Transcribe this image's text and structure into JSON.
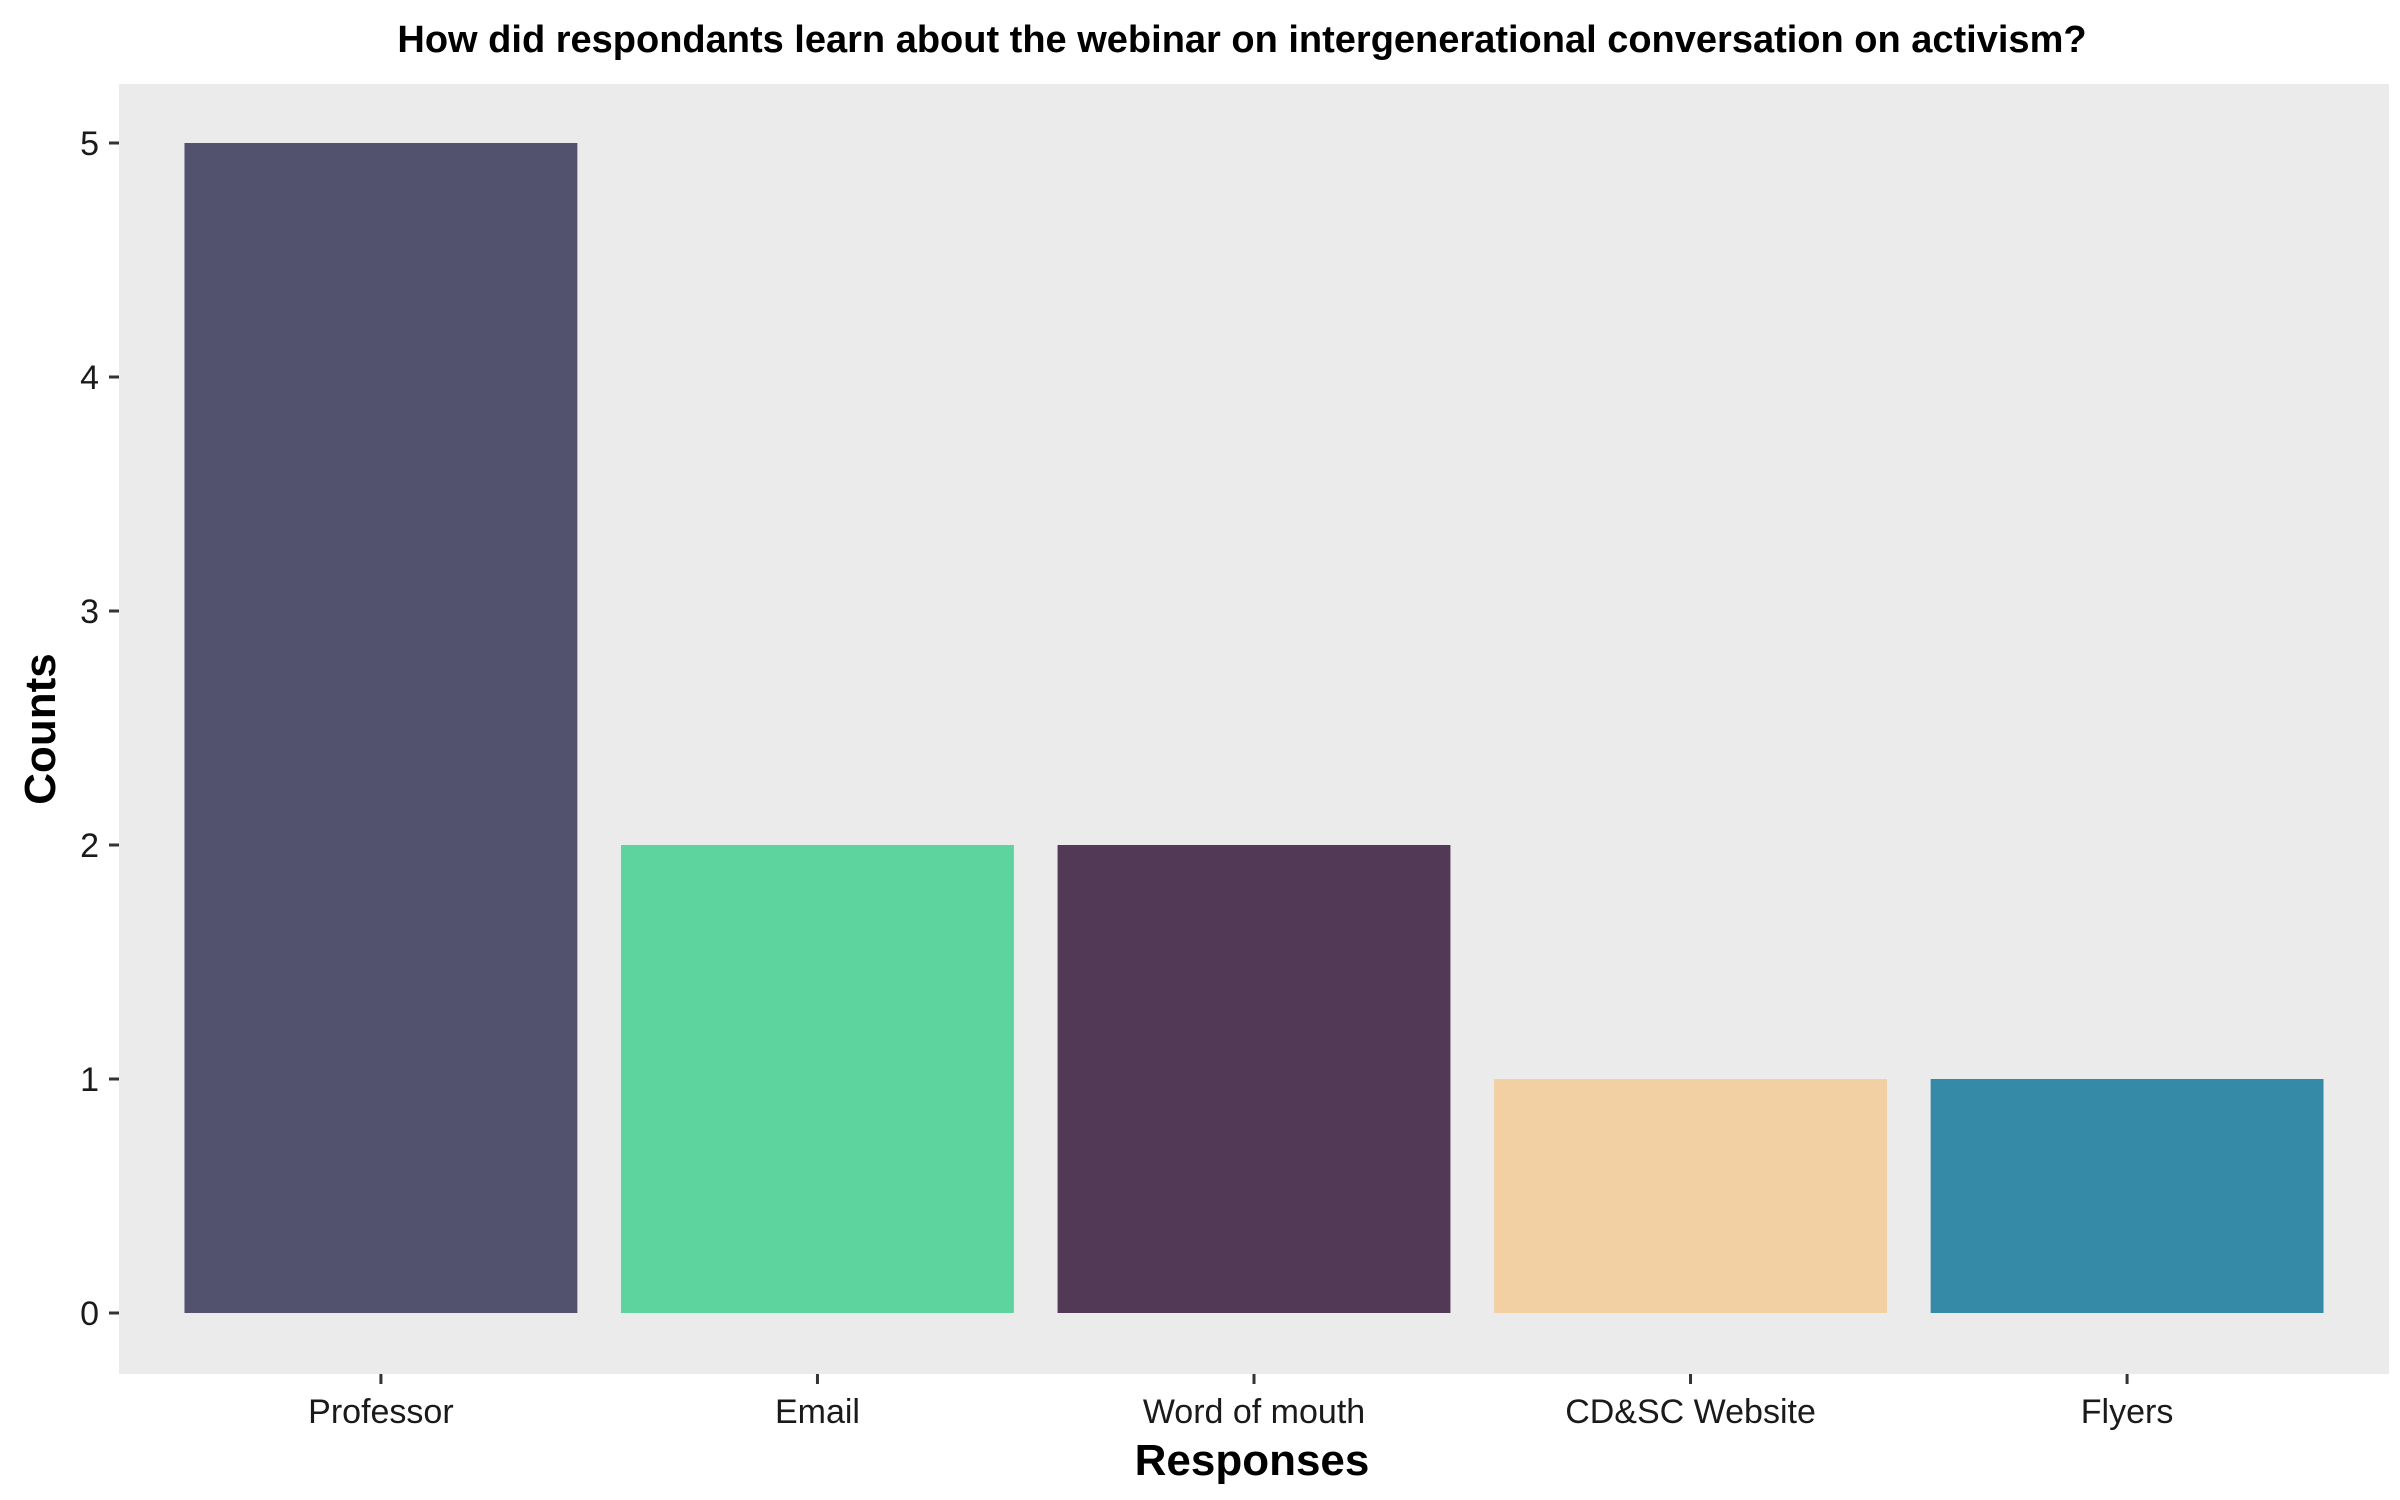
{
  "chart_data": {
    "type": "bar",
    "title": "How did respondants learn about the webinar on intergenerational conversation on activism?",
    "xlabel": "Responses",
    "ylabel": "Counts",
    "categories": [
      "Professor",
      "Email",
      "Word of mouth",
      "CD&SC Website",
      "Flyers"
    ],
    "values": [
      5,
      2,
      2,
      1,
      1
    ],
    "colors": [
      "#52516e",
      "#5dd39e",
      "#523a56",
      "#f2d0a4",
      "#348aa7"
    ],
    "ylim": [
      0,
      5
    ],
    "yticks": [
      "0",
      "1",
      "2",
      "3",
      "4",
      "5"
    ],
    "panel_background": "#ebebeb",
    "grid": false,
    "legend": "none"
  }
}
